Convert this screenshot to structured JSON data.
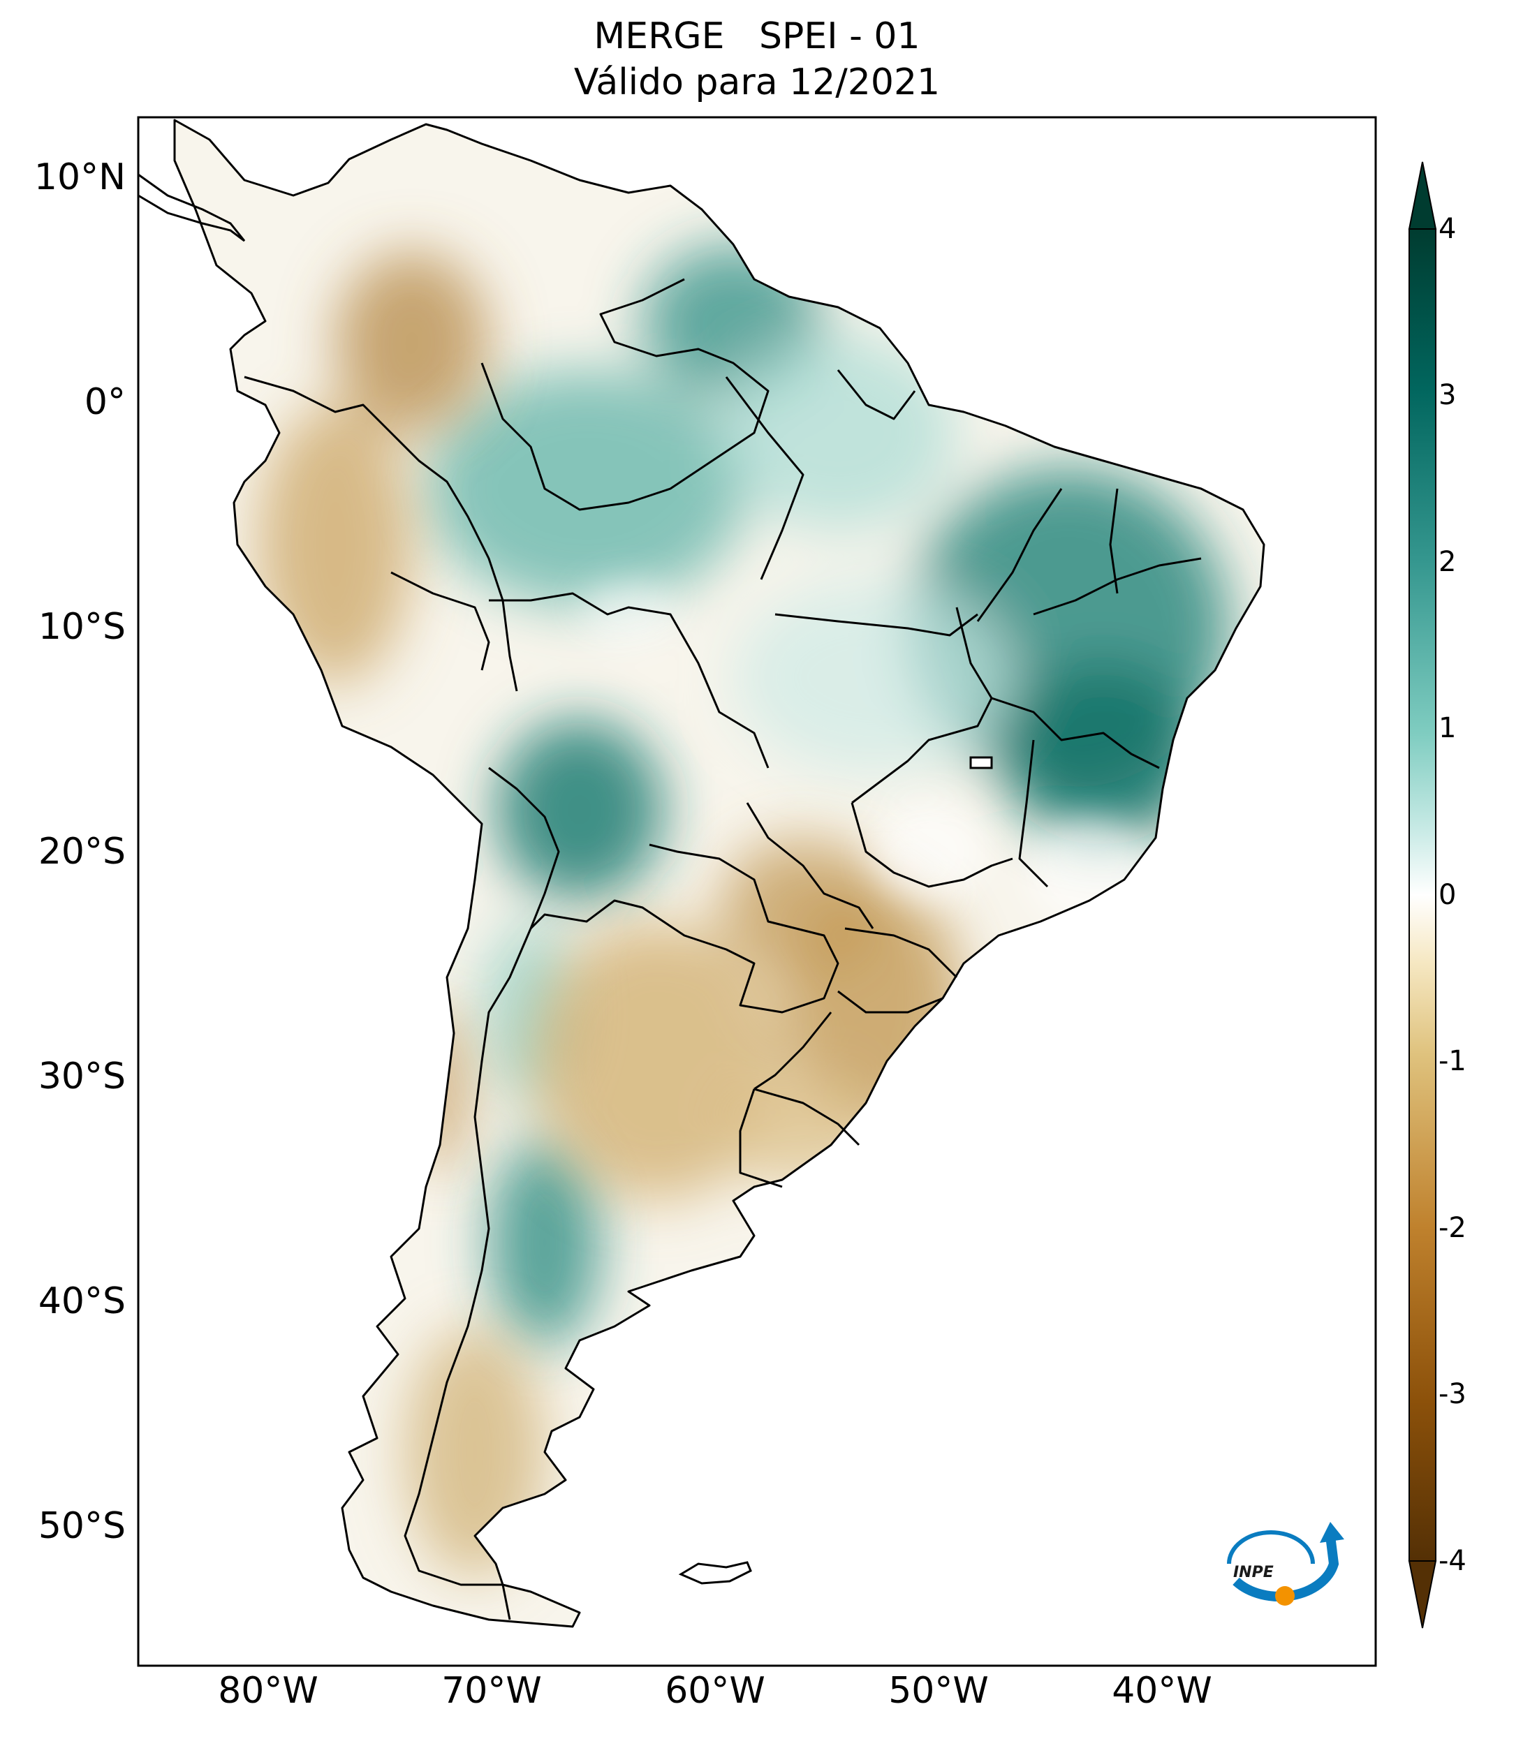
{
  "title": {
    "line1": "MERGE   SPEI - 01",
    "line2": "Válido para 12/2021"
  },
  "map": {
    "region": "South America",
    "variable": "SPEI - 01",
    "latitude_labels": [
      "10°N",
      "0°",
      "10°S",
      "20°S",
      "30°S",
      "40°S",
      "50°S"
    ],
    "longitude_labels": [
      "80°W",
      "70°W",
      "60°W",
      "50°W",
      "40°W"
    ],
    "logo_text": "INPE"
  },
  "colorbar": {
    "ticks": [
      "4",
      "3",
      "2",
      "1",
      "0",
      "-1",
      "-2",
      "-3",
      "-4"
    ],
    "min": -4,
    "max": 4,
    "colors": [
      "#543005",
      "#8c510a",
      "#bf812d",
      "#dfc27d",
      "#f6e8c3",
      "#ffffff",
      "#c7eae5",
      "#80cdc1",
      "#35978f",
      "#01665e",
      "#003c30"
    ]
  },
  "anomalies": [
    {
      "region": "Northern Brazil / Amazon",
      "sign": "wet",
      "intensity": 0.55
    },
    {
      "region": "Northeast and central-east Brazil",
      "sign": "wet",
      "intensity": 0.8
    },
    {
      "region": "Bolivia lowlands",
      "sign": "wet",
      "intensity": 0.7
    },
    {
      "region": "Central Argentina (Pampas)",
      "sign": "dry",
      "intensity": 0.5
    },
    {
      "region": "Southern Brazil / Uruguay / Paraguay",
      "sign": "dry",
      "intensity": 0.6
    },
    {
      "region": "Colombia / Peru Andes",
      "sign": "dry",
      "intensity": 0.55
    },
    {
      "region": "Patagonia",
      "sign": "dry",
      "intensity": 0.45
    },
    {
      "region": "Western Argentina",
      "sign": "wet",
      "intensity": 0.6
    }
  ]
}
